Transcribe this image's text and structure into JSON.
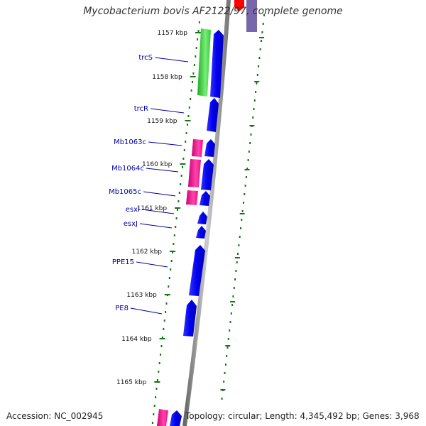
{
  "title": "Mycobacterium bovis AF2122/97, complete genome",
  "accession_text": "Accession: NC_002945",
  "topology_text": "Topology: circular; Length: 4,345,492 bp; Genes: 3,968",
  "colors": {
    "forward_gene": "#0000ee",
    "reverse_gene": "#ee1188",
    "rna_gene": "#33cc33",
    "backbone": "#888888",
    "tick": "#117711",
    "label": "#0000aa"
  },
  "ticks": [
    "1157 kbp",
    "1158 kbp",
    "1159 kbp",
    "1160 kbp",
    "1161 kbp",
    "1162 kbp",
    "1163 kbp",
    "1164 kbp",
    "1165 kbp"
  ],
  "genes": [
    {
      "label": "trcS"
    },
    {
      "label": "trcR"
    },
    {
      "label": "Mb1063c"
    },
    {
      "label": "Mb1064c"
    },
    {
      "label": "Mb1065c"
    },
    {
      "label": "esxI"
    },
    {
      "label": "esxJ"
    },
    {
      "label": "PPE15"
    },
    {
      "label": "PE8"
    }
  ]
}
